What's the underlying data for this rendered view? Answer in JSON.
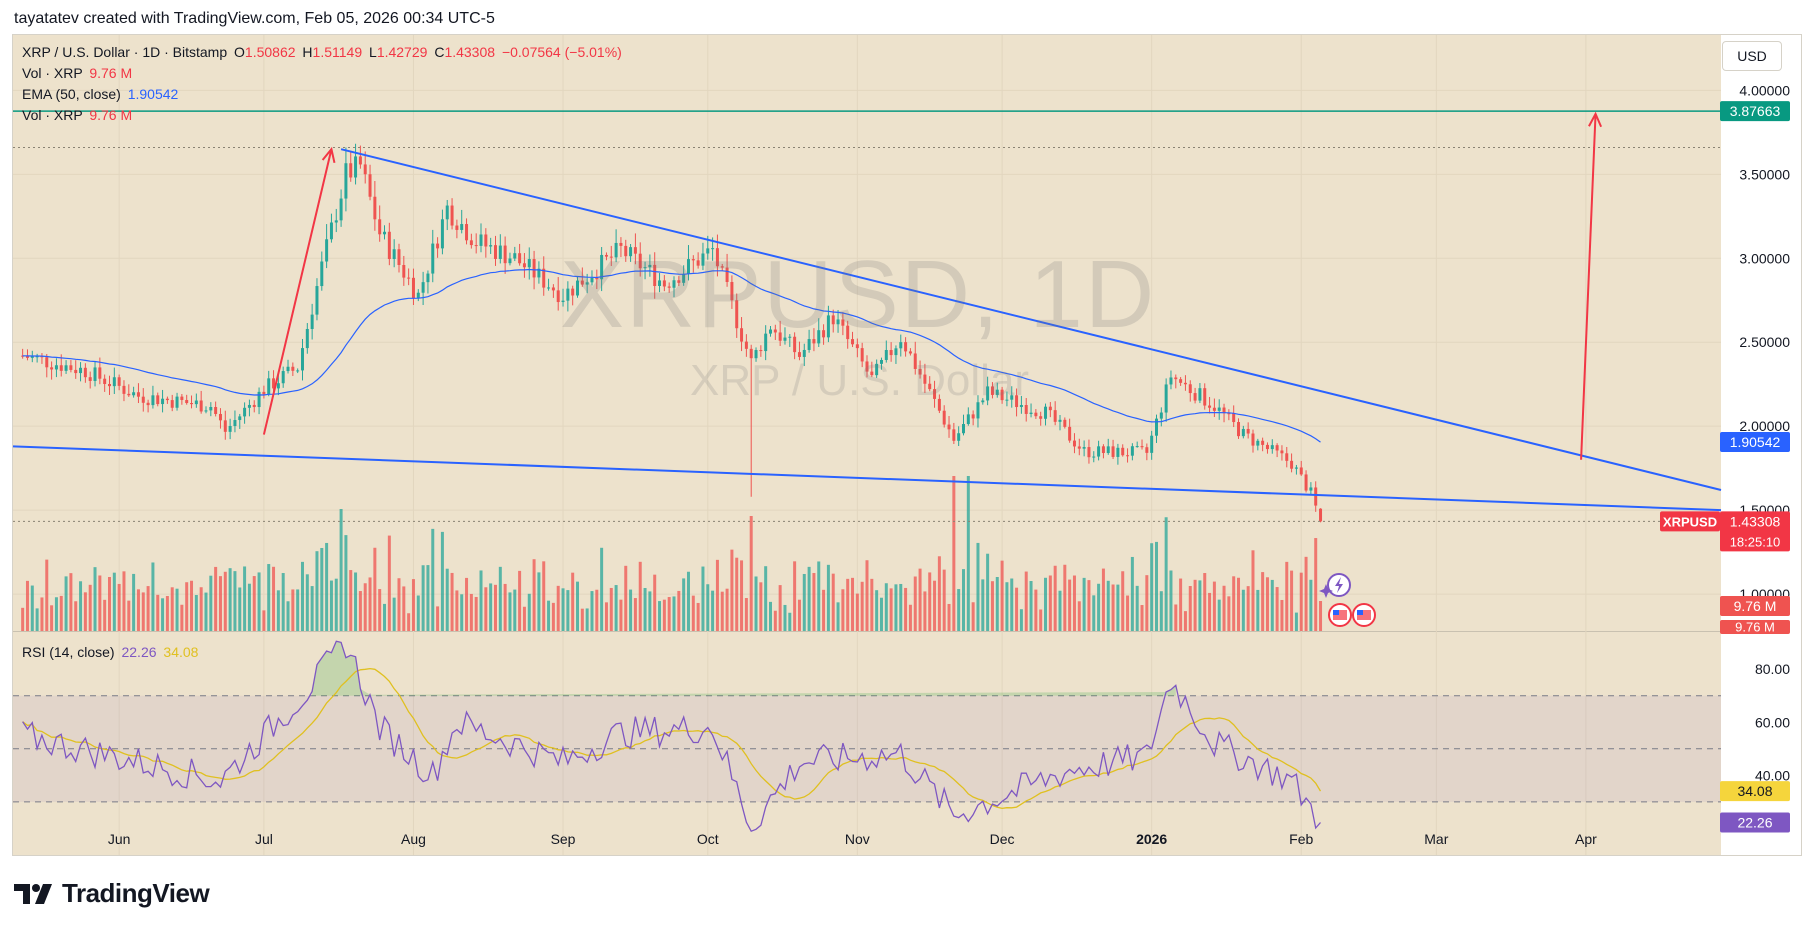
{
  "header": {
    "attribution": "tayatatev created with TradingView.com, Feb 05, 2026 00:34 UTC-5"
  },
  "legend": {
    "symbol": "XRP / U.S. Dollar · 1D · Bitstamp",
    "o_label": "O",
    "o_value": "1.50862",
    "h_label": "H",
    "h_value": "1.51149",
    "l_label": "L",
    "l_value": "1.42729",
    "c_label": "C",
    "c_value": "1.43308",
    "change": "−0.07564 (−5.01%)",
    "vol1_label": "Vol · XRP",
    "vol1_value": "9.76 M",
    "ema_label": "EMA (50, close)",
    "ema_value": "1.90542",
    "vol2_label": "Vol · XRP",
    "vol2_value": "9.76 M",
    "rsi_label": "RSI (14, close)",
    "rsi_value": "22.26",
    "rsi_ma_value": "34.08"
  },
  "currency_button": "USD",
  "watermark": {
    "big": "XRPUSD, 1D",
    "small": "XRP / U.S. Dollar"
  },
  "badges": {
    "target": "3.87663",
    "ema": "1.90542",
    "symbol": "XRPUSD",
    "price": "1.43308",
    "countdown": "18:25:10",
    "vol_a": "9.76 M",
    "vol_b": "9.76 M",
    "rsi_ma": "34.08",
    "rsi": "22.26"
  },
  "logo_text": "TradingView",
  "colors": {
    "background": "#ede2cc",
    "up": "#26a69a",
    "down": "#ef5350",
    "trendline": "#2962ff",
    "ema": "#2962ff",
    "target_line": "#089981",
    "arrow": "#f23645",
    "rsi": "#7e57c2",
    "rsi_ma": "#e0c020"
  },
  "chart_data": {
    "type": "candlestick",
    "title": "XRP / U.S. Dollar · 1D · Bitstamp",
    "price_axis": {
      "ticks": [
        "4.00000",
        "3.50000",
        "3.00000",
        "2.50000",
        "2.00000",
        "1.50000",
        "1.00000"
      ],
      "range": [
        0.78,
        4.33
      ]
    },
    "time_axis": {
      "ticks": [
        "Jun",
        "Jul",
        "Aug",
        "Sep",
        "Oct",
        "Nov",
        "Dec",
        "2026",
        "Feb",
        "Mar",
        "Apr"
      ],
      "start": "2025-05-10",
      "end": "2026-04-29"
    },
    "last_candle": {
      "date": "2026-02-05",
      "open": 1.50862,
      "high": 1.51149,
      "low": 1.42729,
      "close": 1.43308,
      "volume": "9.76 M"
    },
    "ema_50_last": 1.90542,
    "key_closes": [
      [
        "2025-05-12",
        2.42
      ],
      [
        "2025-05-25",
        2.33
      ],
      [
        "2025-06-05",
        2.18
      ],
      [
        "2025-06-20",
        2.12
      ],
      [
        "2025-06-23",
        1.97
      ],
      [
        "2025-07-01",
        2.22
      ],
      [
        "2025-07-08",
        2.35
      ],
      [
        "2025-07-13",
        2.95
      ],
      [
        "2025-07-18",
        3.5
      ],
      [
        "2025-07-21",
        3.55
      ],
      [
        "2025-07-25",
        3.15
      ],
      [
        "2025-08-02",
        2.78
      ],
      [
        "2025-08-08",
        3.3
      ],
      [
        "2025-08-14",
        3.1
      ],
      [
        "2025-08-22",
        3.0
      ],
      [
        "2025-09-01",
        2.78
      ],
      [
        "2025-09-13",
        3.05
      ],
      [
        "2025-09-22",
        2.85
      ],
      [
        "2025-10-02",
        3.05
      ],
      [
        "2025-10-10",
        2.38
      ],
      [
        "2025-10-14",
        2.6
      ],
      [
        "2025-10-20",
        2.42
      ],
      [
        "2025-10-27",
        2.65
      ],
      [
        "2025-11-04",
        2.28
      ],
      [
        "2025-11-10",
        2.53
      ],
      [
        "2025-11-20",
        1.98
      ],
      [
        "2025-11-21",
        1.92
      ],
      [
        "2025-11-28",
        2.2
      ],
      [
        "2025-12-10",
        2.08
      ],
      [
        "2025-12-18",
        1.85
      ],
      [
        "2025-12-31",
        1.84
      ],
      [
        "2026-01-05",
        2.3
      ],
      [
        "2026-01-14",
        2.12
      ],
      [
        "2026-01-20",
        1.95
      ],
      [
        "2026-01-30",
        1.78
      ],
      [
        "2026-02-03",
        1.6
      ],
      [
        "2026-02-05",
        1.43308
      ]
    ],
    "series": [
      {
        "name": "EMA (50, close)",
        "last": 1.90542
      },
      {
        "name": "RSI (14, close)",
        "last": 22.26
      },
      {
        "name": "RSI MA",
        "last": 34.08
      }
    ],
    "annotations": {
      "upper_trendline": [
        [
          "2025-07-17",
          3.65
        ],
        [
          "2026-04-29",
          1.62
        ]
      ],
      "lower_trendline": [
        [
          "2025-05-10",
          1.88
        ],
        [
          "2026-04-29",
          1.5
        ]
      ],
      "target_level": 3.87663,
      "arrow_rally": [
        [
          "2025-07-01",
          1.95
        ],
        [
          "2025-07-15",
          3.65
        ]
      ],
      "arrow_projection": [
        [
          "2026-03-31",
          1.8
        ],
        [
          "2026-04-03",
          3.86
        ]
      ],
      "prior_high_level": 3.66
    },
    "rsi_axis": {
      "ticks": [
        "80.00",
        "60.00",
        "40.00"
      ],
      "range": [
        10,
        94
      ],
      "bands": [
        70,
        50,
        30
      ]
    },
    "rsi_key_points": [
      [
        "2025-05-12",
        55
      ],
      [
        "2025-06-05",
        45
      ],
      [
        "2025-06-22",
        38
      ],
      [
        "2025-07-10",
        72
      ],
      [
        "2025-07-18",
        90
      ],
      [
        "2025-07-25",
        58
      ],
      [
        "2025-08-05",
        40
      ],
      [
        "2025-08-10",
        60
      ],
      [
        "2025-09-01",
        45
      ],
      [
        "2025-09-13",
        56
      ],
      [
        "2025-10-02",
        58
      ],
      [
        "2025-10-10",
        21
      ],
      [
        "2025-10-20",
        45
      ],
      [
        "2025-11-10",
        48
      ],
      [
        "2025-11-21",
        25
      ],
      [
        "2025-12-15",
        42
      ],
      [
        "2025-12-31",
        47
      ],
      [
        "2026-01-05",
        76
      ],
      [
        "2026-01-14",
        52
      ],
      [
        "2026-01-30",
        38
      ],
      [
        "2026-02-05",
        22.26
      ]
    ]
  }
}
